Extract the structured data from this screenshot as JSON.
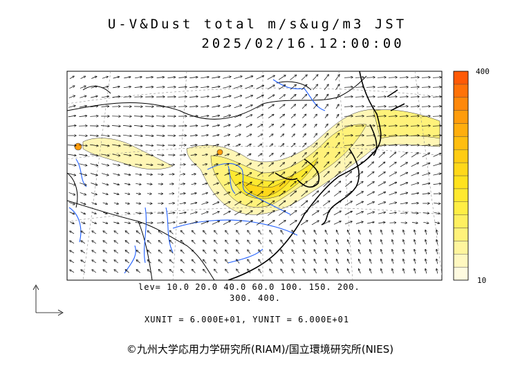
{
  "header": {
    "title_line1": "U-V&Dust total m/s&ug/m3 JST",
    "title_line2": "2025/02/16.12:00:00"
  },
  "levels": {
    "line1": "lev= 10.0 20.0 40.0 60.0 100. 150. 200.",
    "line2": "300. 400."
  },
  "units": {
    "text": "XUNIT = 6.000E+01, YUNIT = 6.000E+01"
  },
  "colorbar": {
    "max_label": "400",
    "min_label": "10",
    "colors": [
      "#fffbe0",
      "#fff8c0",
      "#fff59d",
      "#fff27a",
      "#fff060",
      "#ffee44",
      "#ffe930",
      "#ffe21f",
      "#ffd81a",
      "#ffcc14",
      "#ffbe10",
      "#ffae0e",
      "#ff9c0c",
      "#ff880a",
      "#ff7208",
      "#ff5a06"
    ]
  },
  "credit": "©九州大学応用力学研究所(RIAM)/国立環境研究所(NIES)",
  "map": {
    "icons": [
      "vector-arrows",
      "coastline",
      "rivers",
      "dust-contours",
      "reference-vector-icon"
    ]
  }
}
